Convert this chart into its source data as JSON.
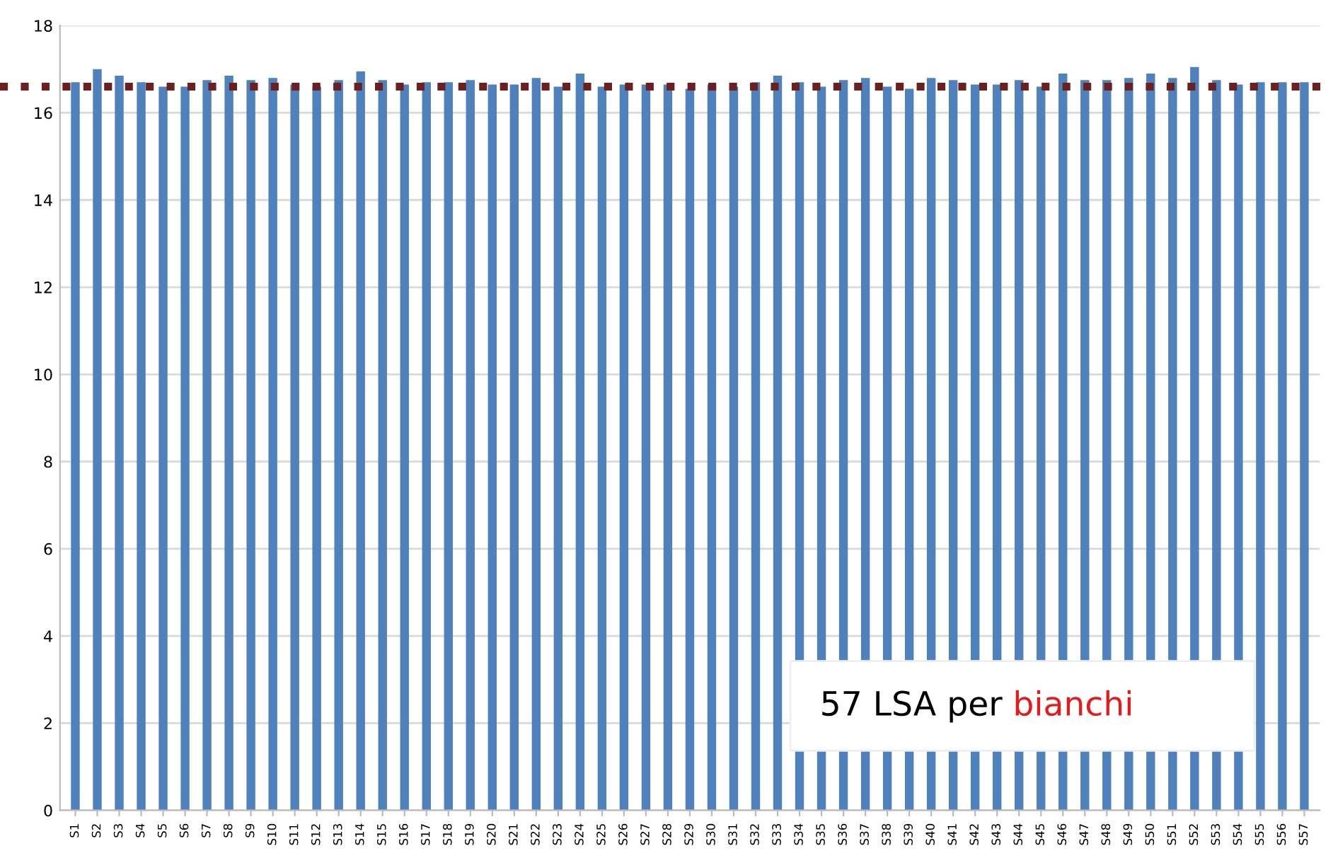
{
  "chart_data": {
    "type": "bar",
    "categories": [
      "S1",
      "S2",
      "S3",
      "S4",
      "S5",
      "S6",
      "S7",
      "S8",
      "S9",
      "S10",
      "S11",
      "S12",
      "S13",
      "S14",
      "S15",
      "S16",
      "S17",
      "S18",
      "S19",
      "S20",
      "S21",
      "S22",
      "S23",
      "S24",
      "S25",
      "S26",
      "S27",
      "S28",
      "S29",
      "S30",
      "S31",
      "S32",
      "S33",
      "S34",
      "S35",
      "S36",
      "S37",
      "S38",
      "S39",
      "S40",
      "S41",
      "S42",
      "S43",
      "S44",
      "S45",
      "S46",
      "S47",
      "S48",
      "S49",
      "S50",
      "S51",
      "S52",
      "S53",
      "S54",
      "S55",
      "S56",
      "S57"
    ],
    "values": [
      16.7,
      17.0,
      16.85,
      16.7,
      16.6,
      16.6,
      16.75,
      16.85,
      16.75,
      16.8,
      16.65,
      16.6,
      16.75,
      16.95,
      16.75,
      16.65,
      16.7,
      16.7,
      16.75,
      16.65,
      16.65,
      16.8,
      16.6,
      16.9,
      16.6,
      16.65,
      16.65,
      16.65,
      16.55,
      16.65,
      16.6,
      16.7,
      16.85,
      16.7,
      16.6,
      16.75,
      16.8,
      16.6,
      16.55,
      16.8,
      16.75,
      16.65,
      16.65,
      16.75,
      16.6,
      16.9,
      16.75,
      16.75,
      16.8,
      16.9,
      16.8,
      17.05,
      16.75,
      16.65,
      16.7,
      16.7,
      16.7
    ],
    "color": "#4f81bd",
    "ylim": [
      0,
      18
    ],
    "yticks": [
      0,
      2,
      4,
      6,
      8,
      10,
      12,
      14,
      16,
      18
    ],
    "grid": "y",
    "ref_lines": [
      {
        "axis": "y",
        "value": 16.6,
        "color": "#6b1f1f",
        "line_style": "dotted"
      }
    ],
    "annotations": [
      "57 LSA per",
      "bianchi"
    ]
  }
}
